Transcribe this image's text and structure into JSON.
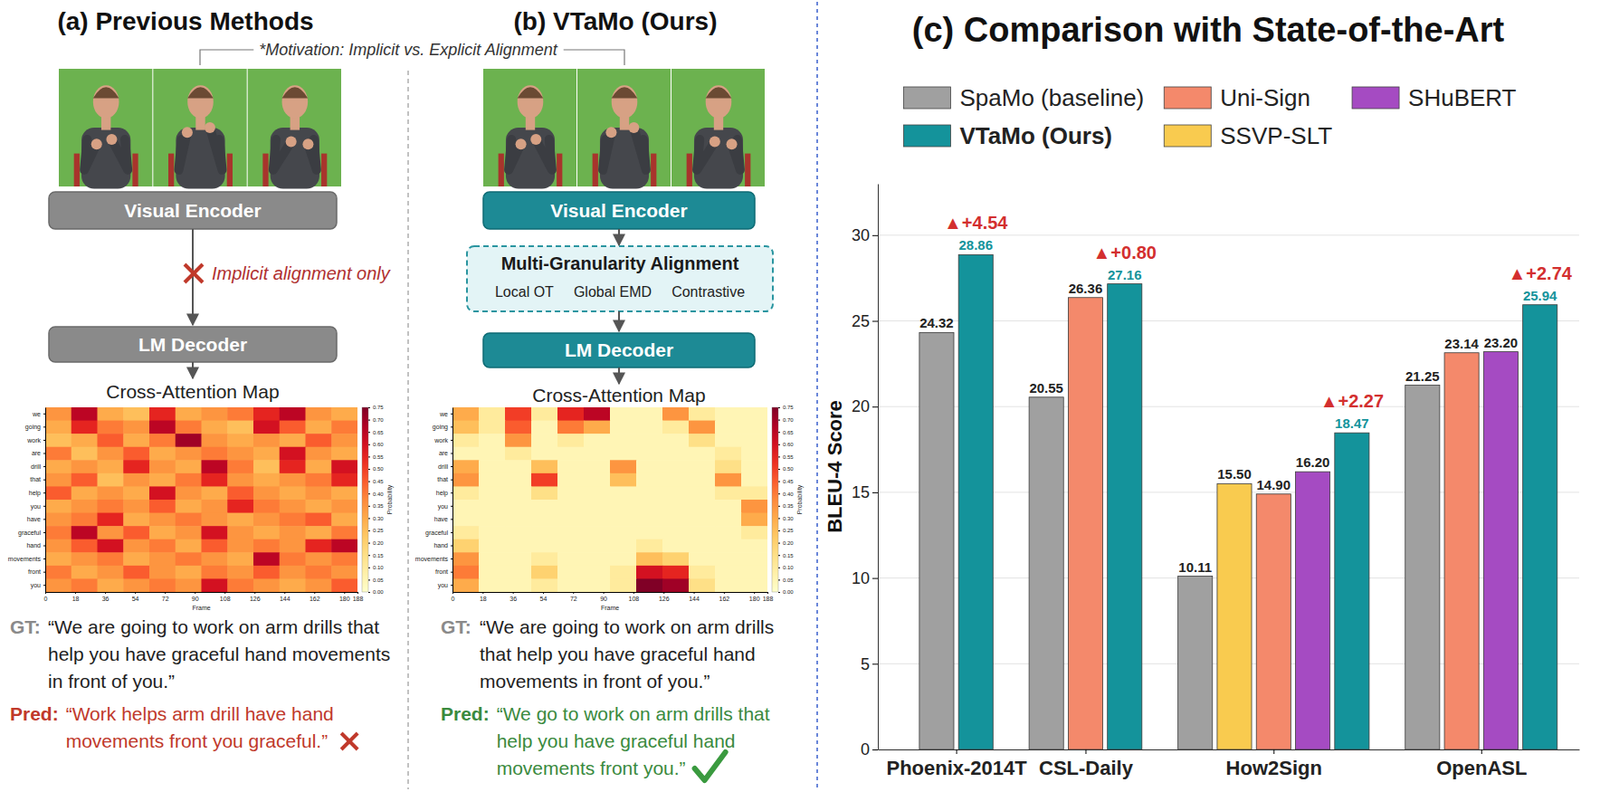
{
  "motivation": "*Motivation: Implicit vs. Explicit Alignment",
  "panel_a": {
    "title": "(a) Previous Methods",
    "encoder": "Visual Encoder",
    "note": "Implicit alignment only",
    "decoder": "LM Decoder",
    "map_title": "Cross-Attention Map",
    "heatmap": {
      "type": "heatmap",
      "rows": [
        "we",
        "going",
        "work",
        "are",
        "drill",
        "that",
        "help",
        "you",
        "have",
        "graceful",
        "hand",
        "movements",
        "front",
        "you"
      ],
      "cells": [
        [
          0.35,
          0.65,
          0.3,
          0.25,
          0.55,
          0.3,
          0.35,
          0.4,
          0.55,
          0.65,
          0.35,
          0.3
        ],
        [
          0.3,
          0.55,
          0.4,
          0.35,
          0.65,
          0.4,
          0.3,
          0.25,
          0.6,
          0.45,
          0.3,
          0.4
        ],
        [
          0.25,
          0.3,
          0.45,
          0.3,
          0.4,
          0.7,
          0.35,
          0.3,
          0.35,
          0.3,
          0.45,
          0.35
        ],
        [
          0.4,
          0.25,
          0.35,
          0.45,
          0.3,
          0.35,
          0.4,
          0.35,
          0.3,
          0.6,
          0.35,
          0.3
        ],
        [
          0.3,
          0.35,
          0.3,
          0.55,
          0.35,
          0.3,
          0.65,
          0.4,
          0.25,
          0.55,
          0.3,
          0.6
        ],
        [
          0.35,
          0.45,
          0.25,
          0.35,
          0.3,
          0.4,
          0.55,
          0.35,
          0.3,
          0.35,
          0.4,
          0.55
        ],
        [
          0.45,
          0.3,
          0.35,
          0.3,
          0.6,
          0.35,
          0.3,
          0.45,
          0.35,
          0.3,
          0.35,
          0.3
        ],
        [
          0.3,
          0.35,
          0.4,
          0.35,
          0.45,
          0.3,
          0.35,
          0.55,
          0.4,
          0.35,
          0.3,
          0.35
        ],
        [
          0.35,
          0.4,
          0.55,
          0.3,
          0.35,
          0.4,
          0.35,
          0.3,
          0.35,
          0.4,
          0.45,
          0.3
        ],
        [
          0.4,
          0.65,
          0.35,
          0.45,
          0.3,
          0.35,
          0.6,
          0.35,
          0.3,
          0.35,
          0.3,
          0.4
        ],
        [
          0.35,
          0.45,
          0.6,
          0.35,
          0.4,
          0.3,
          0.45,
          0.35,
          0.4,
          0.35,
          0.55,
          0.65
        ],
        [
          0.3,
          0.35,
          0.4,
          0.3,
          0.35,
          0.4,
          0.35,
          0.3,
          0.65,
          0.4,
          0.35,
          0.4
        ],
        [
          0.4,
          0.3,
          0.35,
          0.45,
          0.35,
          0.3,
          0.4,
          0.35,
          0.45,
          0.35,
          0.4,
          0.35
        ],
        [
          0.35,
          0.4,
          0.3,
          0.35,
          0.4,
          0.35,
          0.6,
          0.4,
          0.35,
          0.3,
          0.35,
          0.45
        ]
      ],
      "xlim": [
        0,
        188
      ],
      "xticks": [
        0,
        18,
        36,
        54,
        72,
        90,
        108,
        126,
        144,
        162,
        180,
        188
      ],
      "x_label": "Frame",
      "colorbar": {
        "range": [
          0,
          0.75
        ],
        "ticks": [
          {
            "value": 0,
            "label": "0.00"
          },
          0.05,
          {
            "value": 0.1,
            "label": "0.10"
          },
          0.15,
          {
            "value": 0.2,
            "label": "0.20"
          },
          0.25,
          {
            "value": 0.3,
            "label": "0.30"
          },
          0.35,
          {
            "value": 0.4,
            "label": "0.40"
          },
          0.45,
          {
            "value": 0.5,
            "label": "0.50"
          },
          0.55,
          {
            "value": 0.6,
            "label": "0.60"
          },
          0.65,
          {
            "value": 0.7,
            "label": "0.70"
          },
          0.75
        ],
        "label": "Probability"
      }
    },
    "gt_label": "GT:",
    "gt_text": "“We are going to work on arm drills that help you have graceful hand movements in front of you.”",
    "pred_label": "Pred:",
    "pred_text": "“Work helps arm drill have hand movements front you graceful.”"
  },
  "panel_b": {
    "title": "(b) VTaMo (Ours)",
    "encoder": "Visual Encoder",
    "alignment": {
      "title": "Multi-Granularity Alignment",
      "parts": [
        "Local OT",
        "Global EMD",
        "Contrastive"
      ]
    },
    "decoder": "LM Decoder",
    "map_title": "Cross-Attention Map",
    "heatmap": {
      "type": "heatmap",
      "rows": [
        "we",
        "going",
        "work",
        "are",
        "drill",
        "that",
        "help",
        "you",
        "have",
        "graceful",
        "hand",
        "movements",
        "front",
        "you"
      ],
      "cells": [
        [
          0.3,
          0.1,
          0.5,
          0.1,
          0.55,
          0.65,
          0.05,
          0.05,
          0.35,
          0.1,
          0.05,
          0.05
        ],
        [
          0.25,
          0.1,
          0.45,
          0.05,
          0.4,
          0.3,
          0.05,
          0.05,
          0.1,
          0.35,
          0.05,
          0.05
        ],
        [
          0.1,
          0.05,
          0.35,
          0.05,
          0.1,
          0.05,
          0.05,
          0.05,
          0.05,
          0.15,
          0.05,
          0.05
        ],
        [
          0.05,
          0.05,
          0.1,
          0.05,
          0.05,
          0.05,
          0.05,
          0.05,
          0.05,
          0.05,
          0.1,
          0.05
        ],
        [
          0.3,
          0.05,
          0.05,
          0.25,
          0.05,
          0.05,
          0.35,
          0.05,
          0.05,
          0.05,
          0.15,
          0.05
        ],
        [
          0.35,
          0.05,
          0.05,
          0.5,
          0.05,
          0.05,
          0.25,
          0.05,
          0.05,
          0.05,
          0.35,
          0.05
        ],
        [
          0.1,
          0.05,
          0.05,
          0.15,
          0.05,
          0.05,
          0.05,
          0.05,
          0.05,
          0.05,
          0.1,
          0.1
        ],
        [
          0.05,
          0.05,
          0.05,
          0.05,
          0.05,
          0.05,
          0.05,
          0.05,
          0.05,
          0.05,
          0.05,
          0.35
        ],
        [
          0.05,
          0.05,
          0.05,
          0.05,
          0.05,
          0.05,
          0.05,
          0.05,
          0.05,
          0.05,
          0.05,
          0.3
        ],
        [
          0.1,
          0.05,
          0.05,
          0.05,
          0.05,
          0.05,
          0.05,
          0.05,
          0.05,
          0.05,
          0.05,
          0.1
        ],
        [
          0.2,
          0.05,
          0.05,
          0.05,
          0.05,
          0.05,
          0.05,
          0.1,
          0.05,
          0.05,
          0.05,
          0.05
        ],
        [
          0.35,
          0.05,
          0.05,
          0.1,
          0.05,
          0.05,
          0.05,
          0.25,
          0.2,
          0.05,
          0.05,
          0.05
        ],
        [
          0.4,
          0.05,
          0.05,
          0.2,
          0.05,
          0.05,
          0.1,
          0.6,
          0.55,
          0.1,
          0.05,
          0.05
        ],
        [
          0.3,
          0.05,
          0.05,
          0.1,
          0.05,
          0.05,
          0.1,
          0.75,
          0.7,
          0.15,
          0.05,
          0.05
        ]
      ],
      "xlim": [
        0,
        188
      ],
      "xticks": [
        0,
        18,
        36,
        54,
        72,
        90,
        108,
        126,
        144,
        162,
        180,
        188
      ],
      "x_label": "Frame",
      "colorbar": {
        "range": [
          0,
          0.75
        ],
        "ticks": [
          {
            "value": 0,
            "label": "0.00"
          },
          0.05,
          {
            "value": 0.1,
            "label": "0.10"
          },
          0.15,
          {
            "value": 0.2,
            "label": "0.20"
          },
          0.25,
          {
            "value": 0.3,
            "label": "0.30"
          },
          0.35,
          {
            "value": 0.4,
            "label": "0.40"
          },
          0.45,
          {
            "value": 0.5,
            "label": "0.50"
          },
          0.55,
          {
            "value": 0.6,
            "label": "0.60"
          },
          0.65,
          {
            "value": 0.7,
            "label": "0.70"
          },
          0.75
        ],
        "label": "Probability"
      }
    },
    "gt_label": "GT:",
    "gt_text": "“We are going to work on arm drills that help you have graceful hand movements in front of you.”",
    "pred_label": "Pred:",
    "pred_text": "“We go to work on arm drills that help you have graceful hand movements front you.”"
  },
  "chart_data": {
    "type": "bar",
    "title": "(c) Comparison with State-of-the-Art",
    "y_label": "BLEU-4 Score",
    "categories": [
      "Phoenix-2014T",
      "CSL-Daily",
      "How2Sign",
      "OpenASL"
    ],
    "series": [
      {
        "name": "SpaMo (baseline)",
        "color": "#a0a0a0",
        "values": [
          24.32,
          20.55,
          10.11,
          21.25
        ],
        "value_labels": [
          "24.32",
          "20.55",
          "10.11",
          "21.25"
        ]
      },
      {
        "name": "SSVP-SLT",
        "color": "#f9cb4f",
        "values": [
          null,
          null,
          15.5,
          null
        ],
        "value_labels": [
          null,
          null,
          "15.50",
          null
        ]
      },
      {
        "name": "Uni-Sign",
        "color": "#f4896b",
        "values": [
          null,
          26.36,
          14.9,
          23.14
        ],
        "value_labels": [
          null,
          "26.36",
          "14.90",
          "23.14"
        ]
      },
      {
        "name": "SHuBERT",
        "color": "#a54bc2",
        "values": [
          null,
          null,
          16.2,
          23.2
        ],
        "value_labels": [
          null,
          null,
          "16.20",
          "23.20"
        ]
      },
      {
        "name": "VTaMo (Ours)",
        "color": "#14939b",
        "values": [
          28.86,
          27.16,
          18.47,
          25.94
        ],
        "value_labels": [
          "28.86",
          "27.16",
          "18.47",
          "25.94"
        ]
      }
    ],
    "ylim": [
      0,
      33
    ],
    "yticks": [
      0,
      5,
      10,
      15,
      20,
      25,
      30
    ],
    "grid": true,
    "legend": "top",
    "data_labels": true,
    "annotations": [
      {
        "text": "▲+4.54",
        "category": "Phoenix-2014T"
      },
      {
        "text": "▲+0.80",
        "category": "CSL-Daily"
      },
      {
        "text": "▲+2.27",
        "category": "How2Sign"
      },
      {
        "text": "▲+2.74",
        "category": "OpenASL"
      }
    ]
  }
}
